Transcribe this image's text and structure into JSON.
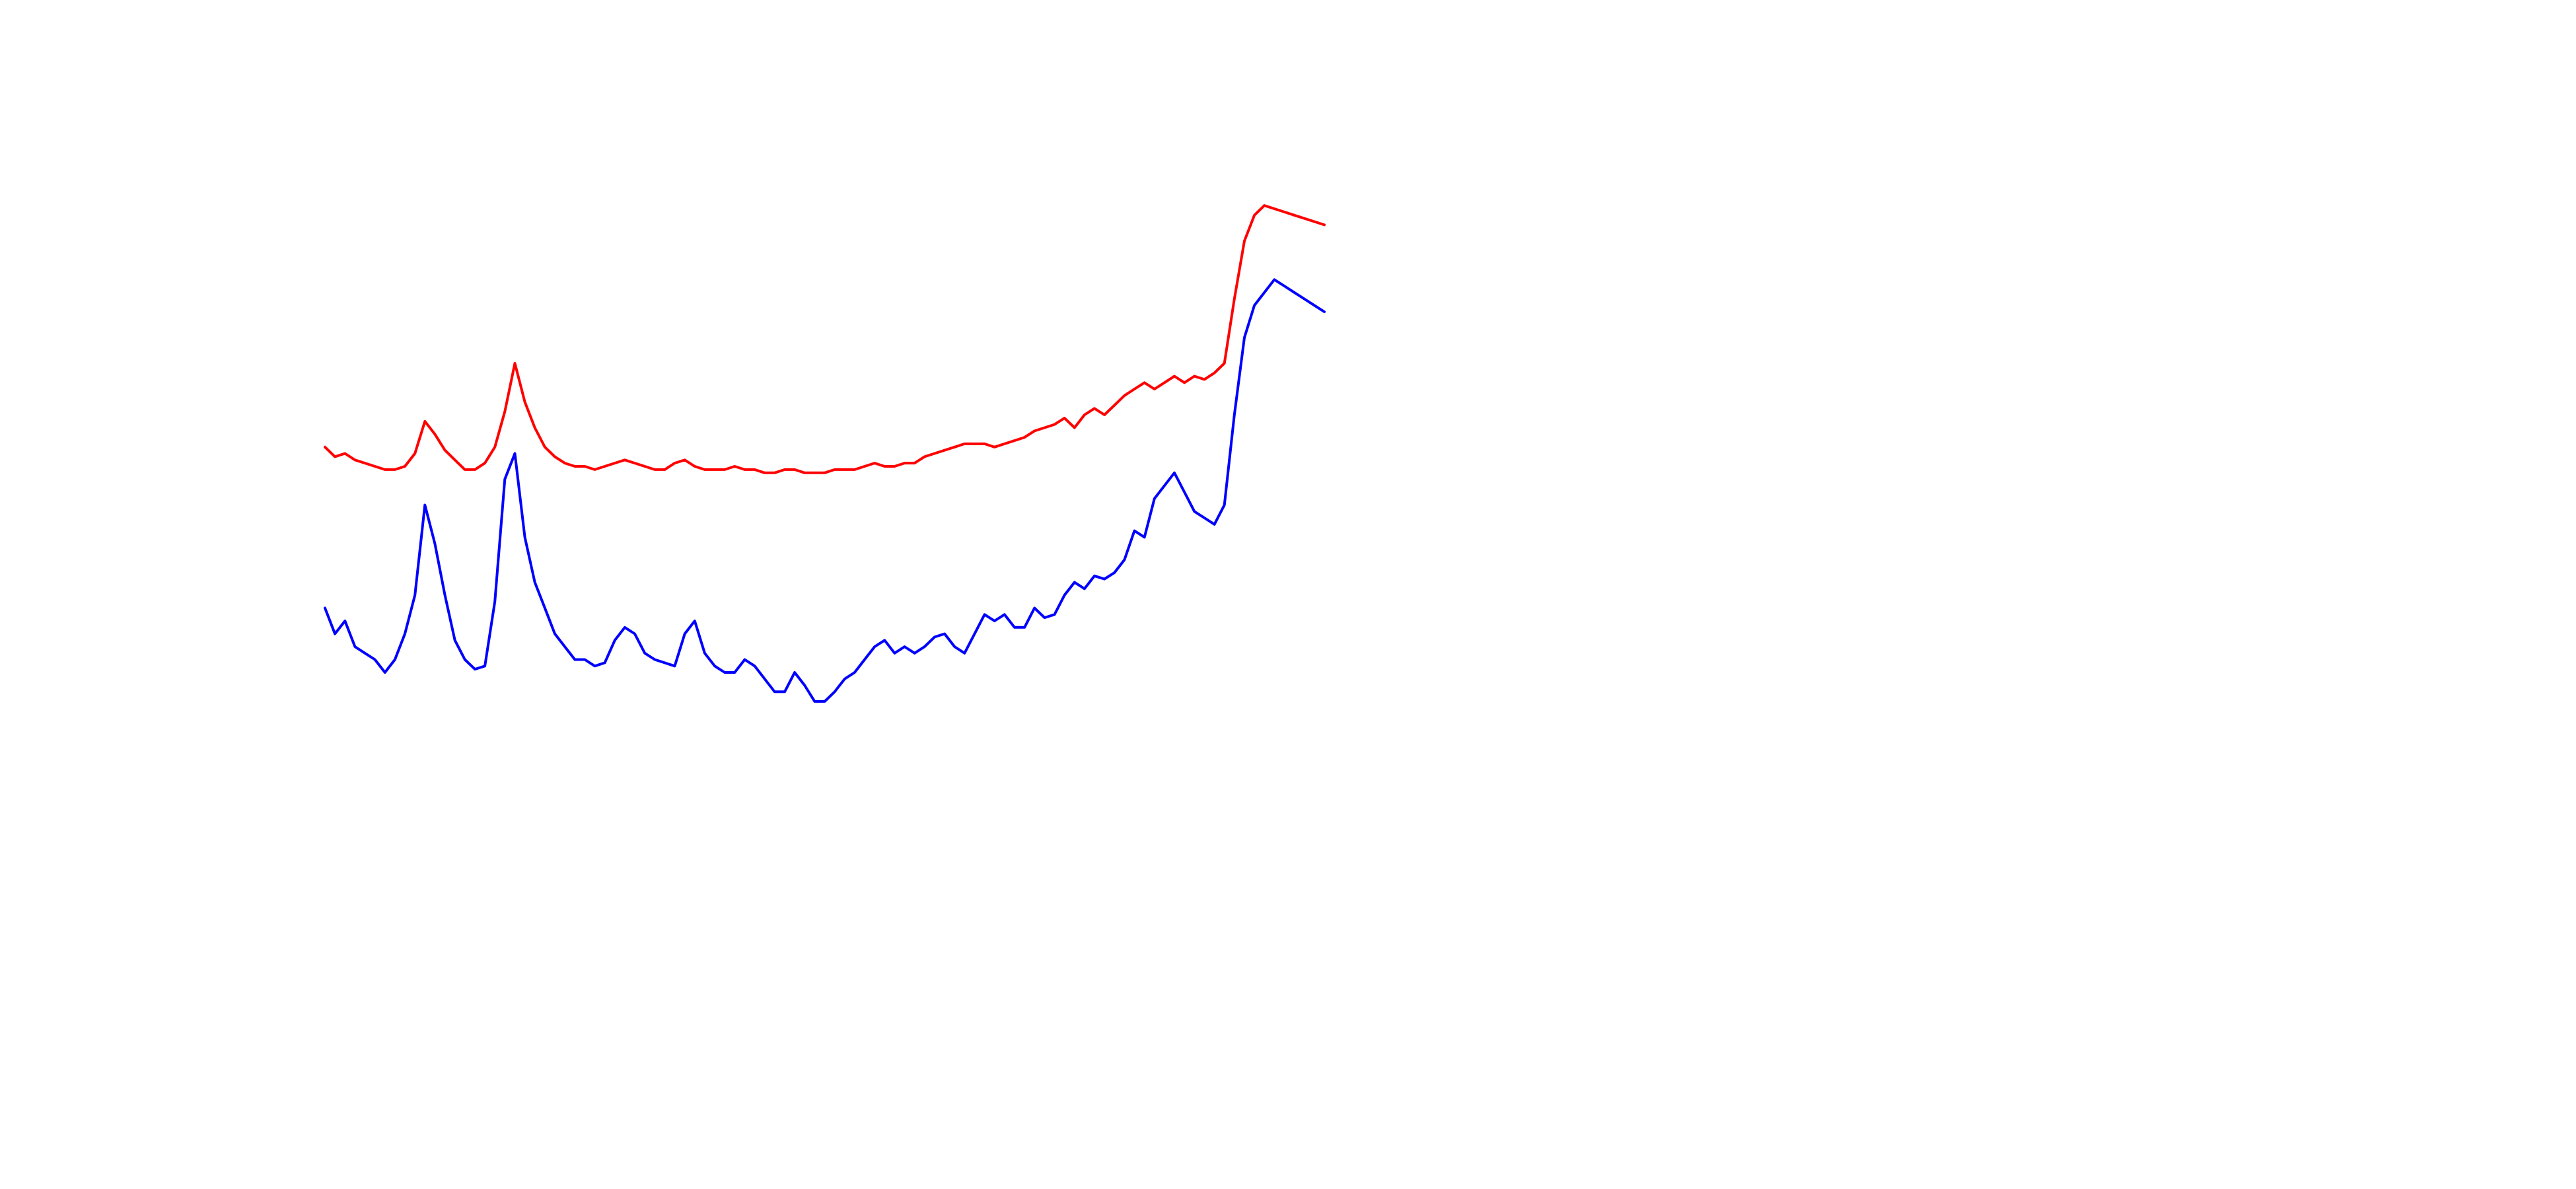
{
  "chart_data": {
    "type": "line",
    "title": "",
    "xlabel": "",
    "ylabel": "",
    "grid": false,
    "legend": "none",
    "xlim": [
      0,
      100
    ],
    "ylim": [
      0,
      100
    ],
    "series": [
      {
        "color": "#ff0000",
        "points": [
          [
            0,
            67
          ],
          [
            1,
            65.5
          ],
          [
            2,
            66
          ],
          [
            3,
            65
          ],
          [
            4,
            64.5
          ],
          [
            5,
            64
          ],
          [
            6,
            63.5
          ],
          [
            7,
            63.5
          ],
          [
            8,
            64
          ],
          [
            9,
            66
          ],
          [
            10,
            71
          ],
          [
            11,
            69
          ],
          [
            12,
            66.5
          ],
          [
            13,
            65
          ],
          [
            14,
            63.5
          ],
          [
            15,
            63.5
          ],
          [
            16,
            64.5
          ],
          [
            17,
            67
          ],
          [
            18,
            72.5
          ],
          [
            19,
            80
          ],
          [
            20,
            74
          ],
          [
            21,
            70
          ],
          [
            22,
            67
          ],
          [
            23,
            65.5
          ],
          [
            24,
            64.5
          ],
          [
            25,
            64
          ],
          [
            26,
            64
          ],
          [
            27,
            63.5
          ],
          [
            28,
            64
          ],
          [
            29,
            64.5
          ],
          [
            30,
            65
          ],
          [
            31,
            64.5
          ],
          [
            32,
            64
          ],
          [
            33,
            63.5
          ],
          [
            34,
            63.5
          ],
          [
            35,
            64.5
          ],
          [
            36,
            65
          ],
          [
            37,
            64
          ],
          [
            38,
            63.5
          ],
          [
            39,
            63.5
          ],
          [
            40,
            63.5
          ],
          [
            41,
            64
          ],
          [
            42,
            63.5
          ],
          [
            43,
            63.5
          ],
          [
            44,
            63
          ],
          [
            45,
            63
          ],
          [
            46,
            63.5
          ],
          [
            47,
            63.5
          ],
          [
            48,
            63
          ],
          [
            49,
            63
          ],
          [
            50,
            63
          ],
          [
            51,
            63.5
          ],
          [
            52,
            63.5
          ],
          [
            53,
            63.5
          ],
          [
            54,
            64
          ],
          [
            55,
            64.5
          ],
          [
            56,
            64
          ],
          [
            57,
            64
          ],
          [
            58,
            64.5
          ],
          [
            59,
            64.5
          ],
          [
            60,
            65.5
          ],
          [
            61,
            66
          ],
          [
            62,
            66.5
          ],
          [
            63,
            67
          ],
          [
            64,
            67.5
          ],
          [
            65,
            67.5
          ],
          [
            66,
            67.5
          ],
          [
            67,
            67
          ],
          [
            68,
            67.5
          ],
          [
            69,
            68
          ],
          [
            70,
            68.5
          ],
          [
            71,
            69.5
          ],
          [
            72,
            70
          ],
          [
            73,
            70.5
          ],
          [
            74,
            71.5
          ],
          [
            75,
            70
          ],
          [
            76,
            72
          ],
          [
            77,
            73
          ],
          [
            78,
            72
          ],
          [
            79,
            73.5
          ],
          [
            80,
            75
          ],
          [
            81,
            76
          ],
          [
            82,
            77
          ],
          [
            83,
            76
          ],
          [
            84,
            77
          ],
          [
            85,
            78
          ],
          [
            86,
            77
          ],
          [
            87,
            78
          ],
          [
            88,
            77.5
          ],
          [
            89,
            78.5
          ],
          [
            90,
            80
          ],
          [
            91,
            90
          ],
          [
            92,
            99
          ],
          [
            93,
            103
          ],
          [
            94,
            104.5
          ],
          [
            95,
            104
          ],
          [
            96,
            103.5
          ],
          [
            97,
            103
          ],
          [
            98,
            102.5
          ],
          [
            99,
            102
          ],
          [
            100,
            101.5
          ]
        ]
      },
      {
        "color": "#0000ff",
        "points": [
          [
            0,
            42
          ],
          [
            1,
            38
          ],
          [
            2,
            40
          ],
          [
            3,
            36
          ],
          [
            4,
            35
          ],
          [
            5,
            34
          ],
          [
            6,
            32
          ],
          [
            7,
            34
          ],
          [
            8,
            38
          ],
          [
            9,
            44
          ],
          [
            10,
            58
          ],
          [
            11,
            52
          ],
          [
            12,
            44
          ],
          [
            13,
            37
          ],
          [
            14,
            34
          ],
          [
            15,
            32.5
          ],
          [
            16,
            33
          ],
          [
            17,
            43
          ],
          [
            18,
            62
          ],
          [
            19,
            66
          ],
          [
            20,
            53
          ],
          [
            21,
            46
          ],
          [
            22,
            42
          ],
          [
            23,
            38
          ],
          [
            24,
            36
          ],
          [
            25,
            34
          ],
          [
            26,
            34
          ],
          [
            27,
            33
          ],
          [
            28,
            33.5
          ],
          [
            29,
            37
          ],
          [
            30,
            39
          ],
          [
            31,
            38
          ],
          [
            32,
            35
          ],
          [
            33,
            34
          ],
          [
            34,
            33.5
          ],
          [
            35,
            33
          ],
          [
            36,
            38
          ],
          [
            37,
            40
          ],
          [
            38,
            35
          ],
          [
            39,
            33
          ],
          [
            40,
            32
          ],
          [
            41,
            32
          ],
          [
            42,
            34
          ],
          [
            43,
            33
          ],
          [
            44,
            31
          ],
          [
            45,
            29
          ],
          [
            46,
            29
          ],
          [
            47,
            32
          ],
          [
            48,
            30
          ],
          [
            49,
            27.5
          ],
          [
            50,
            27.5
          ],
          [
            51,
            29
          ],
          [
            52,
            31
          ],
          [
            53,
            32
          ],
          [
            54,
            34
          ],
          [
            55,
            36
          ],
          [
            56,
            37
          ],
          [
            57,
            35
          ],
          [
            58,
            36
          ],
          [
            59,
            35
          ],
          [
            60,
            36
          ],
          [
            61,
            37.5
          ],
          [
            62,
            38
          ],
          [
            63,
            36
          ],
          [
            64,
            35
          ],
          [
            65,
            38
          ],
          [
            66,
            41
          ],
          [
            67,
            40
          ],
          [
            68,
            41
          ],
          [
            69,
            39
          ],
          [
            70,
            39
          ],
          [
            71,
            42
          ],
          [
            72,
            40.5
          ],
          [
            73,
            41
          ],
          [
            74,
            44
          ],
          [
            75,
            46
          ],
          [
            76,
            45
          ],
          [
            77,
            47
          ],
          [
            78,
            46.5
          ],
          [
            79,
            47.5
          ],
          [
            80,
            49.5
          ],
          [
            81,
            54
          ],
          [
            82,
            53
          ],
          [
            83,
            59
          ],
          [
            84,
            61
          ],
          [
            85,
            63
          ],
          [
            86,
            60
          ],
          [
            87,
            57
          ],
          [
            88,
            56
          ],
          [
            89,
            55
          ],
          [
            90,
            58
          ],
          [
            91,
            72
          ],
          [
            92,
            84
          ],
          [
            93,
            89
          ],
          [
            94,
            91
          ],
          [
            95,
            93
          ],
          [
            96,
            92
          ],
          [
            97,
            91
          ],
          [
            98,
            90
          ],
          [
            99,
            89
          ],
          [
            100,
            88
          ]
        ]
      }
    ]
  }
}
